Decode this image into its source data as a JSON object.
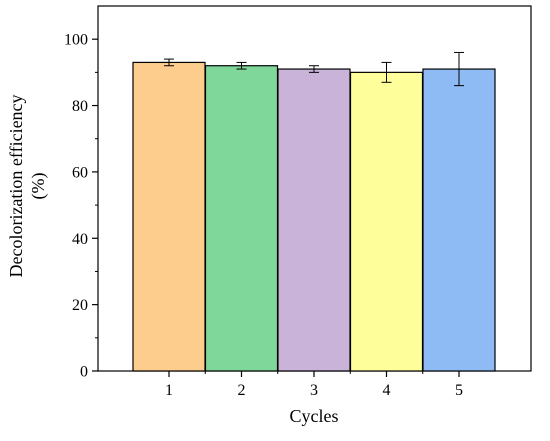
{
  "chart_data": {
    "type": "bar",
    "title": "",
    "xlabel": "Cycles",
    "ylabel_lines": [
      "Decolorization efficiency",
      "(%)"
    ],
    "categories": [
      "1",
      "2",
      "3",
      "4",
      "5"
    ],
    "values": [
      93,
      92,
      91,
      90,
      91
    ],
    "errors": [
      1,
      1,
      1,
      3,
      5
    ],
    "ylim": [
      0,
      110
    ],
    "yticks": [
      0,
      20,
      40,
      60,
      80,
      100
    ],
    "grid": false,
    "legend": "none",
    "colors": [
      "#FDCD8E",
      "#80D79A",
      "#C9B3D9",
      "#FEFE9A",
      "#8FBBF5"
    ],
    "ytick_labels": [
      "0",
      "20",
      "40",
      "60",
      "80",
      "100"
    ]
  }
}
